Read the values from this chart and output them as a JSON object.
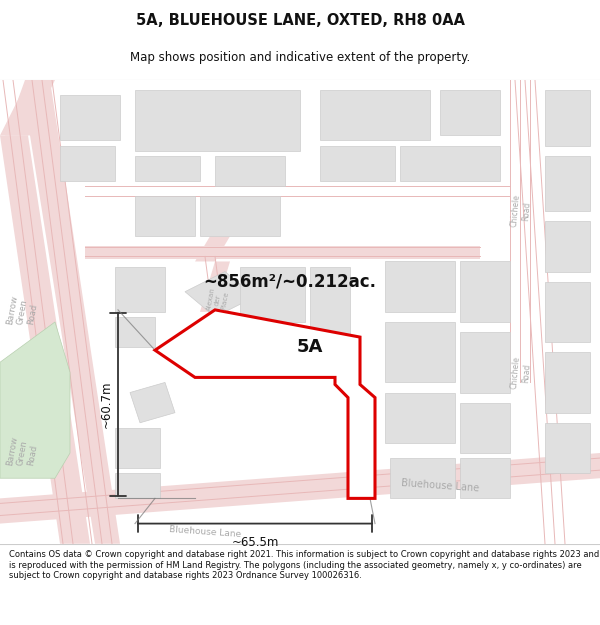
{
  "title": "5A, BLUEHOUSE LANE, OXTED, RH8 0AA",
  "subtitle": "Map shows position and indicative extent of the property.",
  "area_label": "~856m²/~0.212ac.",
  "property_label": "5A",
  "dim_height": "~60.7m",
  "dim_width": "~65.5m",
  "footer": "Contains OS data © Crown copyright and database right 2021. This information is subject to Crown copyright and database rights 2023 and is reproduced with the permission of HM Land Registry. The polygons (including the associated geometry, namely x, y co-ordinates) are subject to Crown copyright and database rights 2023 Ordnance Survey 100026316.",
  "map_bg": "#ffffff",
  "road_color": "#f2d8d8",
  "road_line_color": "#e8b8b8",
  "building_color": "#e0e0e0",
  "building_edge": "#cccccc",
  "highlight_color": "#dd0000",
  "text_color": "#111111",
  "dim_line_color": "#333333",
  "street_label_color": "#aaaaaa",
  "green_color": "#d5e8d0"
}
